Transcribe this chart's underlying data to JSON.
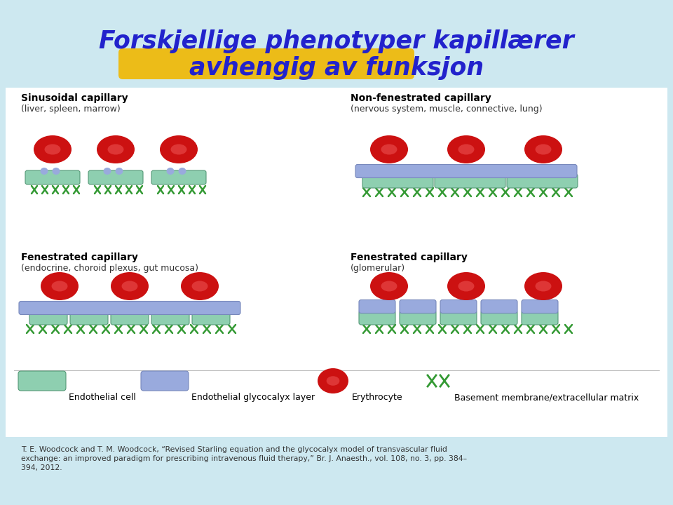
{
  "title_line1": "Forskjellige phenotyper kapillærer",
  "title_line2": "avhengig av funksjon",
  "title_color": "#2222cc",
  "bg_color": "#cde8f0",
  "highlight_color": "#f0b800",
  "caption": "T. E. Woodcock and T. M. Woodcock, “Revised Starling equation and the glycocalyx model of transvascular fluid\nexchange: an improved paradigm for prescribing intravenous fluid therapy,” Br. J. Anaesth., vol. 108, no. 3, pp. 384–\n394, 2012.",
  "panel_labels": [
    [
      "Sinusoidal capillary",
      "(liver, spleen, marrow)"
    ],
    [
      "Non-fenestrated capillary",
      "(nervous system, muscle, connective, lung)"
    ],
    [
      "Fenestrated capillary",
      "(endocrine, choroid plexus, gut mucosa)"
    ],
    [
      "Fenestrated capillary",
      "(glomerular)"
    ]
  ],
  "legend_labels": [
    "Endothelial cell",
    "Endothelial glycocalyx layer",
    "Erythrocyte",
    "Basement membrane/extracellular matrix"
  ],
  "rbc_color": "#cc1111",
  "rbc_inner_color": "#ee5555",
  "endothelial_color": "#8ecfb0",
  "glycocalyx_color": "#99aadd",
  "basement_color": "#339933",
  "white_bg": "#ffffff"
}
